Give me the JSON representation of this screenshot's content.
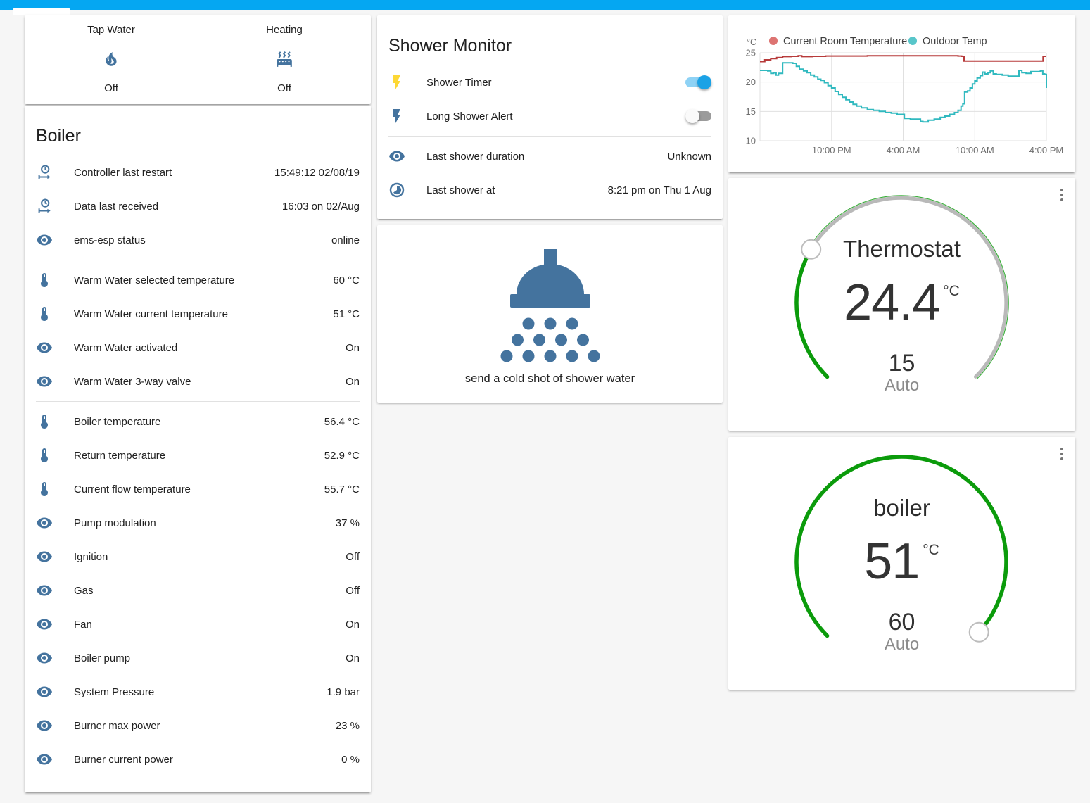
{
  "topbar": {
    "color": "#05a7f2"
  },
  "colors": {
    "icon_blue": "#44739e",
    "accent_green": "#0b9b0b",
    "gauge_track": "#b9b9b9",
    "bolt_amber": "#fdd835",
    "grid": "#e0e0e0",
    "tick_text": "#6e6e6e"
  },
  "glance_card": {
    "items": [
      {
        "label": "Tap Water",
        "icon": "fire",
        "state": "Off"
      },
      {
        "label": "Heating",
        "icon": "radiator",
        "state": "Off"
      }
    ]
  },
  "boiler_card": {
    "title": "Boiler",
    "rows": [
      {
        "icon": "clock-start",
        "label": "Controller last restart",
        "value": "15:49:12 02/08/19"
      },
      {
        "icon": "clock-start",
        "label": "Data last received",
        "value": "16:03 on 02/Aug"
      },
      {
        "icon": "eye",
        "label": "ems-esp status",
        "value": "online"
      },
      {
        "type": "divider"
      },
      {
        "icon": "thermometer",
        "label": "Warm Water selected temperature",
        "value": "60 °C"
      },
      {
        "icon": "thermometer",
        "label": "Warm Water current temperature",
        "value": "51 °C"
      },
      {
        "icon": "eye",
        "label": "Warm Water activated",
        "value": "On"
      },
      {
        "icon": "eye",
        "label": "Warm Water 3-way valve",
        "value": "On"
      },
      {
        "type": "divider"
      },
      {
        "icon": "thermometer",
        "label": "Boiler temperature",
        "value": "56.4 °C"
      },
      {
        "icon": "thermometer",
        "label": "Return temperature",
        "value": "52.9 °C"
      },
      {
        "icon": "thermometer",
        "label": "Current flow temperature",
        "value": "55.7 °C"
      },
      {
        "icon": "eye",
        "label": "Pump modulation",
        "value": "37 %"
      },
      {
        "icon": "eye",
        "label": "Ignition",
        "value": "Off"
      },
      {
        "icon": "eye",
        "label": "Gas",
        "value": "Off"
      },
      {
        "icon": "eye",
        "label": "Fan",
        "value": "On"
      },
      {
        "icon": "eye",
        "label": "Boiler pump",
        "value": "On"
      },
      {
        "icon": "eye",
        "label": "System Pressure",
        "value": "1.9 bar"
      },
      {
        "icon": "eye",
        "label": "Burner max power",
        "value": "23 %"
      },
      {
        "icon": "eye",
        "label": "Burner current power",
        "value": "0 %"
      }
    ]
  },
  "shower_card": {
    "title": "Shower Monitor",
    "toggle_rows": [
      {
        "icon": "flash",
        "icon_color": "#fdd835",
        "label": "Shower Timer",
        "state": "on"
      },
      {
        "icon": "flash",
        "icon_color": "#44739e",
        "label": "Long Shower Alert",
        "state": "off"
      }
    ],
    "info_rows": [
      {
        "icon": "eye",
        "label": "Last shower duration",
        "value": "Unknown"
      },
      {
        "icon": "clock-progress",
        "label": "Last shower at",
        "value": "8:21 pm on Thu 1 Aug"
      }
    ]
  },
  "shower_action_card": {
    "icon": "shower-head",
    "caption": "send a cold shot of shower water"
  },
  "chart_data": {
    "type": "line",
    "title": "",
    "unit": "°C",
    "grid": true,
    "legend_position": "top",
    "ylim": [
      10,
      25
    ],
    "y_ticks": [
      25,
      20,
      15,
      10
    ],
    "x_span_hours": 24,
    "x_ticks": [
      {
        "label": "10:00 PM",
        "t": 6
      },
      {
        "label": "4:00 AM",
        "t": 12
      },
      {
        "label": "10:00 AM",
        "t": 18
      },
      {
        "label": "4:00 PM",
        "t": 24
      }
    ],
    "series": [
      {
        "name": "Current Room Temperature",
        "color": "#b73a3a",
        "dot_color": "#dd7472",
        "points": [
          [
            0,
            23.5
          ],
          [
            0.4,
            23.8
          ],
          [
            0.9,
            24.0
          ],
          [
            1.4,
            24.2
          ],
          [
            1.9,
            24.35
          ],
          [
            2.6,
            24.4
          ],
          [
            3.2,
            24.5
          ],
          [
            3.5,
            24.35
          ],
          [
            4.4,
            24.4
          ],
          [
            5.5,
            24.45
          ],
          [
            7,
            24.45
          ],
          [
            9,
            24.5
          ],
          [
            11,
            24.5
          ],
          [
            13,
            24.5
          ],
          [
            15,
            24.5
          ],
          [
            16.6,
            24.45
          ],
          [
            16.9,
            24.4
          ],
          [
            17.1,
            23.6
          ],
          [
            19,
            23.6
          ],
          [
            21,
            23.6
          ],
          [
            23.6,
            23.6
          ],
          [
            23.72,
            24.4
          ],
          [
            24,
            24.4
          ]
        ]
      },
      {
        "name": "Outdoor Temp",
        "color": "#30b9bf",
        "dot_color": "#58c6ca",
        "points": [
          [
            0,
            22.0
          ],
          [
            0.65,
            21.9
          ],
          [
            0.9,
            21.5
          ],
          [
            1.15,
            21.6
          ],
          [
            1.35,
            21.2
          ],
          [
            1.55,
            21.5
          ],
          [
            1.9,
            23.3
          ],
          [
            2.75,
            23.2
          ],
          [
            3.05,
            22.7
          ],
          [
            3.3,
            22.2
          ],
          [
            3.65,
            21.9
          ],
          [
            3.95,
            21.6
          ],
          [
            4.25,
            21.2
          ],
          [
            4.55,
            20.9
          ],
          [
            4.85,
            20.5
          ],
          [
            5.1,
            20.3
          ],
          [
            5.4,
            19.9
          ],
          [
            5.7,
            19.4
          ],
          [
            6.0,
            19.0
          ],
          [
            6.3,
            18.4
          ],
          [
            6.6,
            17.9
          ],
          [
            6.9,
            17.4
          ],
          [
            7.2,
            17.0
          ],
          [
            7.5,
            16.6
          ],
          [
            7.8,
            16.2
          ],
          [
            8.1,
            15.9
          ],
          [
            8.5,
            15.6
          ],
          [
            9.0,
            15.3
          ],
          [
            9.5,
            15.2
          ],
          [
            10.0,
            15.0
          ],
          [
            10.5,
            14.8
          ],
          [
            11.0,
            14.7
          ],
          [
            11.5,
            14.5
          ],
          [
            12.1,
            13.8
          ],
          [
            12.6,
            13.7
          ],
          [
            13.2,
            13.7
          ],
          [
            13.45,
            13.3
          ],
          [
            13.65,
            13.2
          ],
          [
            14.1,
            13.5
          ],
          [
            14.6,
            13.7
          ],
          [
            15.1,
            14.0
          ],
          [
            15.5,
            14.2
          ],
          [
            15.9,
            14.5
          ],
          [
            16.3,
            14.8
          ],
          [
            16.6,
            15.2
          ],
          [
            16.85,
            15.9
          ],
          [
            17.0,
            16.3
          ],
          [
            17.15,
            18.3
          ],
          [
            17.4,
            18.5
          ],
          [
            17.6,
            19.0
          ],
          [
            17.8,
            19.7
          ],
          [
            18.0,
            20.2
          ],
          [
            18.2,
            20.7
          ],
          [
            18.45,
            21.1
          ],
          [
            18.65,
            21.7
          ],
          [
            18.85,
            21.4
          ],
          [
            19.1,
            21.6
          ],
          [
            19.3,
            21.9
          ],
          [
            19.55,
            21.4
          ],
          [
            19.8,
            21.3
          ],
          [
            20.3,
            21.2
          ],
          [
            20.8,
            21.0
          ],
          [
            21.5,
            21.0
          ],
          [
            21.7,
            22.0
          ],
          [
            21.95,
            21.6
          ],
          [
            22.3,
            21.5
          ],
          [
            22.7,
            21.8
          ],
          [
            23.2,
            21.8
          ],
          [
            23.5,
            21.9
          ],
          [
            23.7,
            21.4
          ],
          [
            23.85,
            21.3
          ],
          [
            24,
            19.0
          ]
        ]
      }
    ]
  },
  "thermostat_card": {
    "title": "Thermostat",
    "value": "24.4",
    "unit": "°C",
    "target": "15",
    "mode": "Auto",
    "progress": 0.28,
    "buttons": [
      {
        "icon": "calendar-sync",
        "color": "#0b9b0b"
      },
      {
        "icon": "power",
        "color": "#9e9e9e"
      }
    ]
  },
  "boiler_gauge_card": {
    "title": "boiler",
    "value": "51",
    "unit": "°C",
    "target": "60",
    "mode": "Auto",
    "progress": 0.99,
    "buttons": [
      {
        "icon": "calendar-sync",
        "color": "#0b9b0b"
      },
      {
        "icon": "power",
        "color": "#9e9e9e"
      }
    ]
  }
}
